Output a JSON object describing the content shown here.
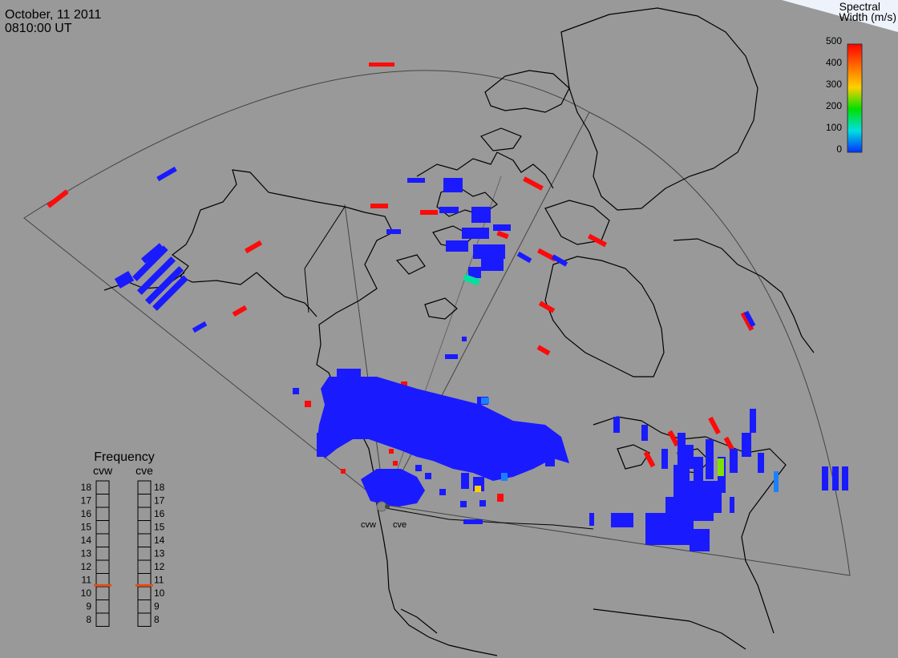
{
  "header": {
    "date": "October, 11 2011",
    "time": "0810:00 UT"
  },
  "colorbar": {
    "title_line1": "Spectral",
    "title_line2": "Width (m/s)",
    "ticks": [
      "500",
      "400",
      "300",
      "200",
      "100",
      "0"
    ],
    "colors": [
      "#ff0000",
      "#ff6a00",
      "#ffd000",
      "#00e000",
      "#00e0e0",
      "#0033ff"
    ]
  },
  "frequency_panel": {
    "title": "Frequency",
    "radars": [
      "cvw",
      "cve"
    ],
    "levels": [
      "18",
      "17",
      "16",
      "15",
      "14",
      "13",
      "12",
      "11",
      "10",
      "9",
      "8"
    ],
    "selected": {
      "cvw": 10.6,
      "cve": 10.6
    },
    "marker_color": "#e0501a"
  },
  "radar_sites": [
    "cvw",
    "cve"
  ],
  "colors": {
    "background": "#999999",
    "fov_outline": "#444444",
    "coast": "#000000",
    "echo_low": "#1a1aff",
    "echo_high": "#ff0a0a",
    "echo_mid": "#00d8a0"
  }
}
